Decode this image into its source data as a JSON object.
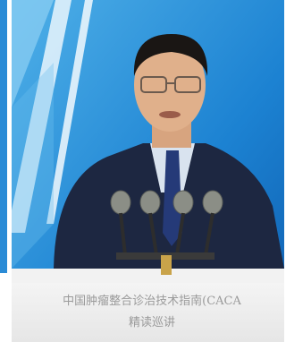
{
  "podium": {
    "line1": "中国肿瘤整合诊治技术指南(CACA",
    "line2": "精读巡讲"
  }
}
